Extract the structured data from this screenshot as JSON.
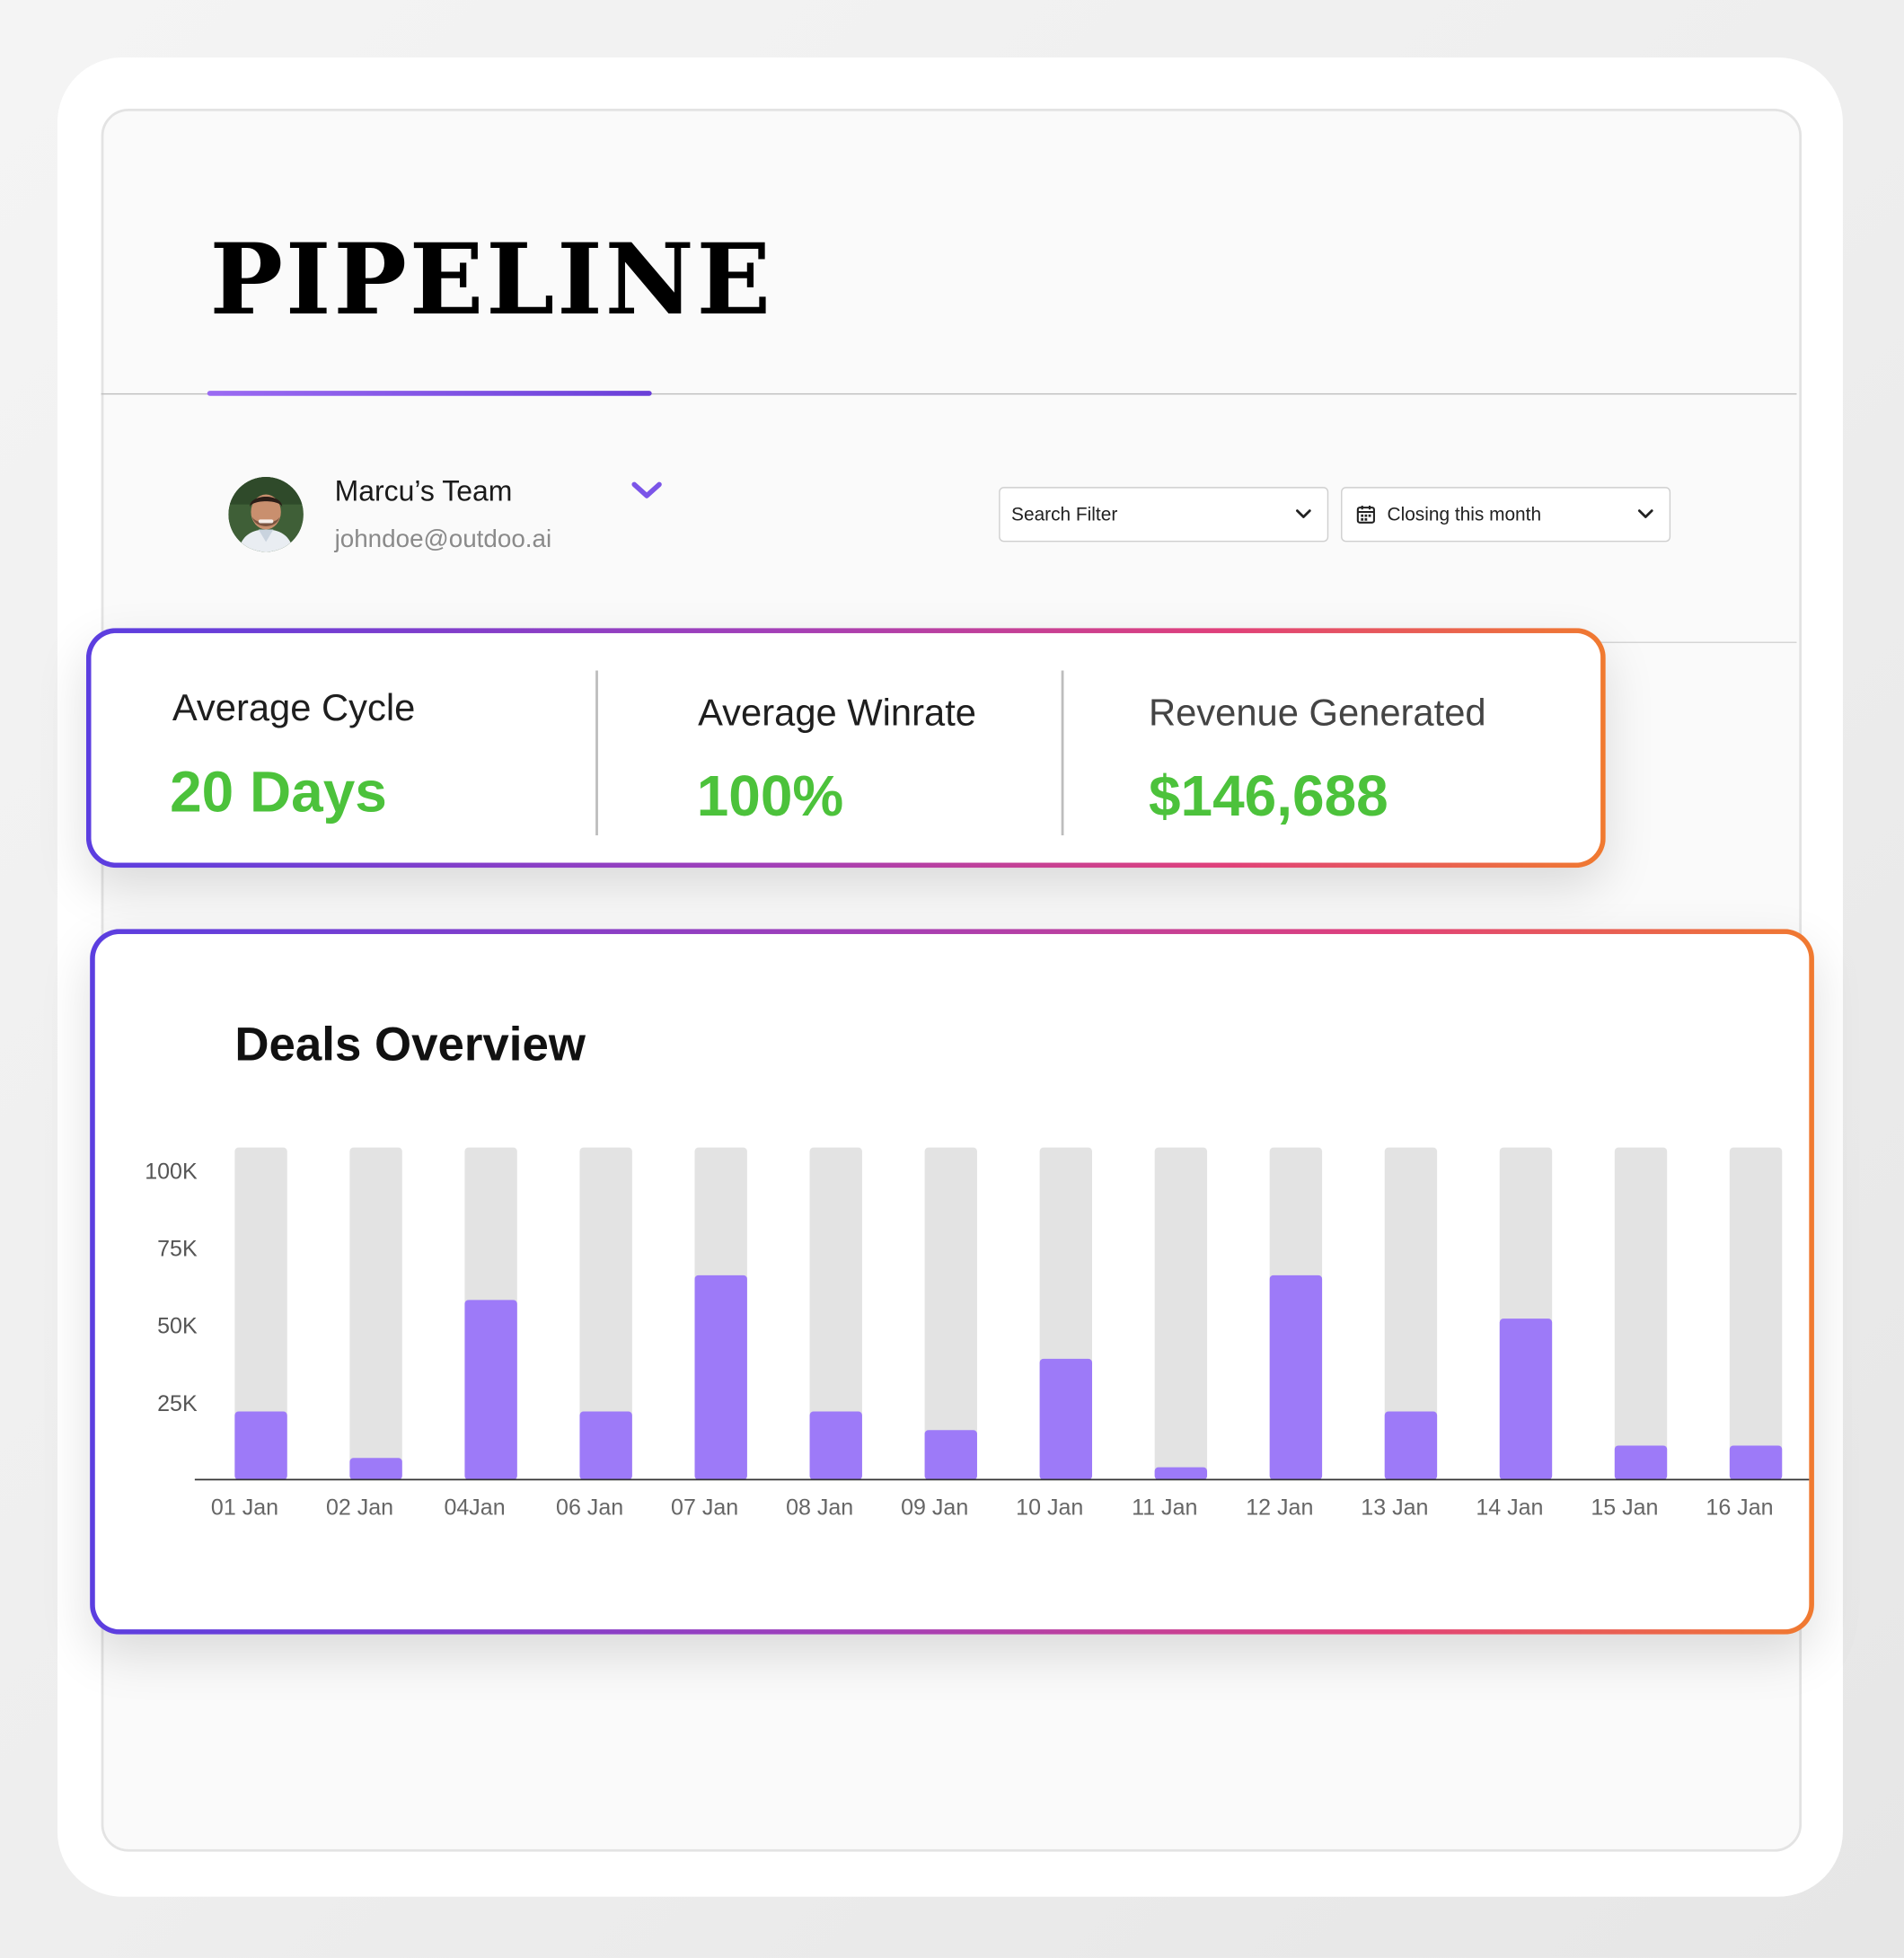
{
  "page": {
    "title": "PIPELINE"
  },
  "team": {
    "name": "Marcu’s Team",
    "email": "johndoe@outdoo.ai",
    "avatar_icon": "person-avatar",
    "dropdown_icon": "chevron-down-icon"
  },
  "filters": {
    "search": {
      "label": "Search Filter",
      "icon": "chevron-down-icon"
    },
    "closing": {
      "label": "Closing this month",
      "icon": "calendar-icon"
    }
  },
  "stats": [
    {
      "label": "Average Cycle",
      "value": "20 Days"
    },
    {
      "label": "Average Winrate",
      "value": "100%"
    },
    {
      "label": "Revenue Generated",
      "value": "$146,688"
    }
  ],
  "colors": {
    "accent": "#6a3fd8",
    "bar_fill": "#9d7af8",
    "bar_track": "#e3e3e3",
    "stat_value": "#4cc23b",
    "border_gradient": [
      "#5b3ee0",
      "#a23fb8",
      "#e0407a",
      "#f07a30"
    ]
  },
  "chart_data": {
    "type": "bar",
    "title": "Deals Overview",
    "categories": [
      "01 Jan",
      "02 Jan",
      "04Jan",
      "06 Jan",
      "07 Jan",
      "08 Jan",
      "09 Jan",
      "10 Jan",
      "11 Jan",
      "12 Jan",
      "13 Jan",
      "14 Jan",
      "15 Jan",
      "16 Jan"
    ],
    "values": [
      22000,
      7000,
      58000,
      22000,
      66000,
      22000,
      16000,
      39000,
      4000,
      66000,
      22000,
      52000,
      11000,
      11000
    ],
    "y_ticks": [
      {
        "value": 25000,
        "label": "25K"
      },
      {
        "value": 50000,
        "label": "50K"
      },
      {
        "value": 75000,
        "label": "75K"
      },
      {
        "value": 100000,
        "label": "100K"
      }
    ],
    "ylim": [
      0,
      100000
    ],
    "grid": false,
    "legend": "none"
  }
}
